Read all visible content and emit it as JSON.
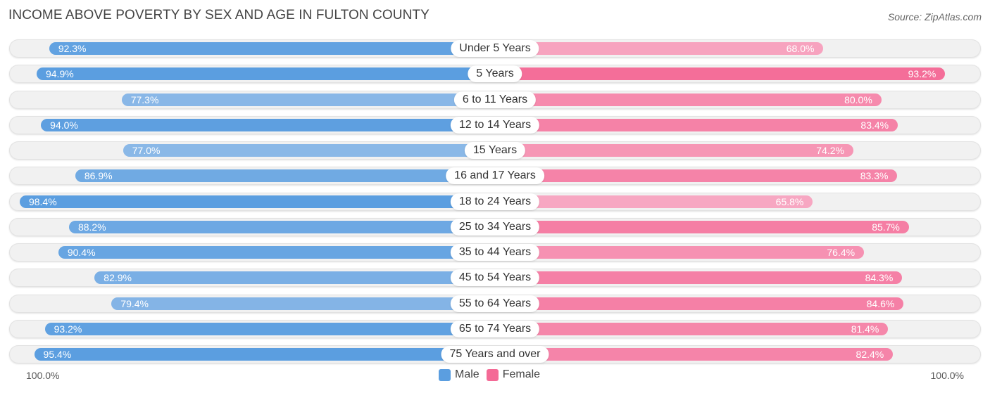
{
  "title": "INCOME ABOVE POVERTY BY SEX AND AGE IN FULTON COUNTY",
  "source": "Source: ZipAtlas.com",
  "axis_left_label": "100.0%",
  "axis_right_label": "100.0%",
  "legend": {
    "male": "Male",
    "female": "Female"
  },
  "colors": {
    "male_strong": "#5b9ee0",
    "male_light": "#a9c9ec",
    "female_strong": "#f46a96",
    "female_light": "#f7a9c3"
  },
  "chart_data": {
    "type": "bar",
    "orientation": "horizontal-diverging",
    "title": "INCOME ABOVE POVERTY BY SEX AND AGE IN FULTON COUNTY",
    "xlim": [
      0,
      100
    ],
    "categories": [
      "Under 5 Years",
      "5 Years",
      "6 to 11 Years",
      "12 to 14 Years",
      "15 Years",
      "16 and 17 Years",
      "18 to 24 Years",
      "25 to 34 Years",
      "35 to 44 Years",
      "45 to 54 Years",
      "55 to 64 Years",
      "65 to 74 Years",
      "75 Years and over"
    ],
    "series": [
      {
        "name": "Male",
        "values": [
          92.3,
          94.9,
          77.3,
          94.0,
          77.0,
          86.9,
          98.4,
          88.2,
          90.4,
          82.9,
          79.4,
          93.2,
          95.4
        ],
        "labels": [
          "92.3%",
          "94.9%",
          "77.3%",
          "94.0%",
          "77.0%",
          "86.9%",
          "98.4%",
          "88.2%",
          "90.4%",
          "82.9%",
          "79.4%",
          "93.2%",
          "95.4%"
        ]
      },
      {
        "name": "Female",
        "values": [
          68.0,
          93.2,
          80.0,
          83.4,
          74.2,
          83.3,
          65.8,
          85.7,
          76.4,
          84.3,
          84.6,
          81.4,
          82.4
        ],
        "labels": [
          "68.0%",
          "93.2%",
          "80.0%",
          "83.4%",
          "74.2%",
          "83.3%",
          "65.8%",
          "85.7%",
          "76.4%",
          "84.3%",
          "84.6%",
          "81.4%",
          "82.4%"
        ]
      }
    ],
    "legend_position": "bottom-center"
  }
}
